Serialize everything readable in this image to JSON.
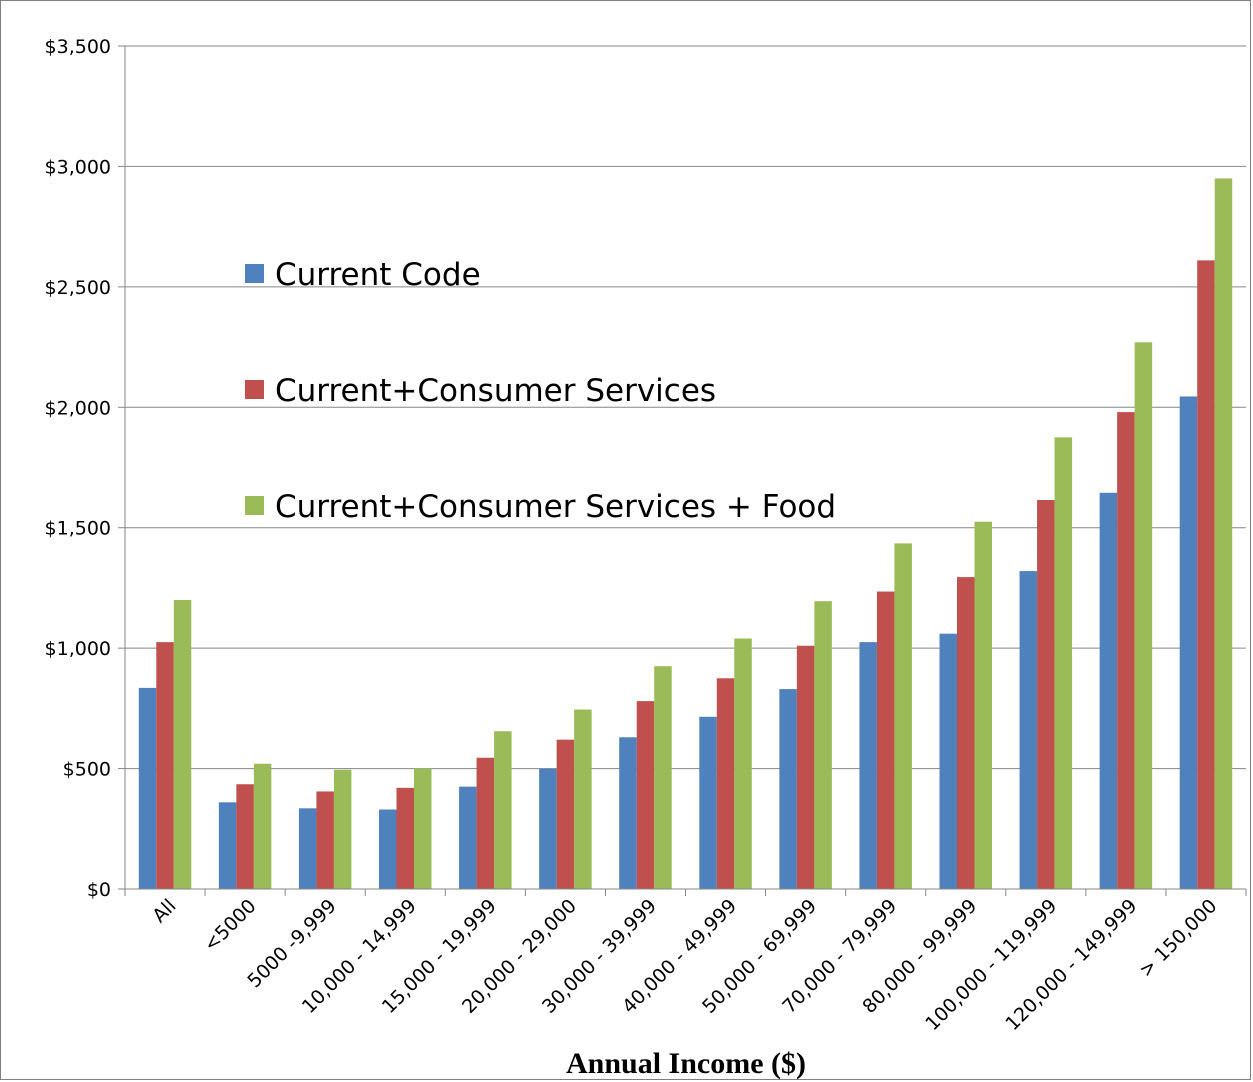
{
  "chart_data": {
    "type": "bar",
    "title": "",
    "xlabel": "Annual Income ($)",
    "ylabel": "",
    "ylim": [
      0,
      3500
    ],
    "yticks": [
      0,
      500,
      1000,
      1500,
      2000,
      2500,
      3000,
      3500
    ],
    "ytick_labels": [
      "$0",
      "$500",
      "$1,000",
      "$1,500",
      "$2,000",
      "$2,500",
      "$3,000",
      "$3,500"
    ],
    "grid": "horizontal",
    "legend_position": "upper-left inside plot",
    "categories": [
      "All",
      "<5000",
      "5000 -9,999",
      "10,000 - 14,999",
      "15,000 - 19,999",
      "20,000 - 29,000",
      "30,000 - 39,999",
      "40,000 - 49,999",
      "50,000 - 69,999",
      "70,000 - 79,999",
      "80,000 - 99,999",
      "100,000 - 119,999",
      "120,000 - 149,999",
      "> 150,000"
    ],
    "series": [
      {
        "name": "Current Code",
        "color": "#4f81bd",
        "values": [
          835,
          360,
          335,
          330,
          425,
          500,
          630,
          715,
          830,
          1025,
          1060,
          1320,
          1645,
          2045
        ]
      },
      {
        "name": "Current+Consumer Services",
        "color": "#c0504d",
        "values": [
          1025,
          435,
          405,
          420,
          545,
          620,
          780,
          875,
          1010,
          1235,
          1295,
          1615,
          1980,
          2610
        ]
      },
      {
        "name": "Current+Consumer Services + Food",
        "color": "#9bbb59",
        "values": [
          1200,
          520,
          495,
          500,
          655,
          745,
          925,
          1040,
          1195,
          1435,
          1525,
          1875,
          2270,
          2950
        ]
      }
    ]
  }
}
